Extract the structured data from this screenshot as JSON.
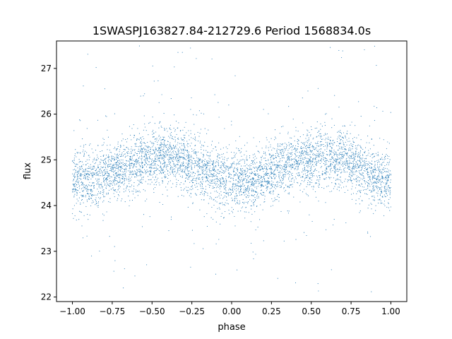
{
  "chart_data": {
    "type": "scatter",
    "title": "1SWASPJ163827.84-212729.6 Period 1568834.0s",
    "xlabel": "phase",
    "ylabel": "flux",
    "xlim": [
      -1.1,
      1.1
    ],
    "ylim": [
      21.9,
      27.6
    ],
    "xticks": [
      -1.0,
      -0.75,
      -0.5,
      -0.25,
      0.0,
      0.25,
      0.5,
      0.75,
      1.0
    ],
    "xtick_labels": [
      "−1.00",
      "−0.75",
      "−0.50",
      "−0.25",
      "0.00",
      "0.25",
      "0.50",
      "0.75",
      "1.00"
    ],
    "yticks": [
      22,
      23,
      24,
      25,
      26,
      27
    ],
    "ytick_labels": [
      "22",
      "23",
      "24",
      "25",
      "26",
      "27"
    ],
    "grid": false,
    "point_color": "#1f77b4",
    "series": [
      {
        "phase_range": [
          -1.0,
          1.0
        ],
        "typical_flux_range": [
          23.8,
          25.8
        ],
        "outlier_flux_range": [
          22.1,
          27.5
        ],
        "profile": [
          {
            "phase": -1.0,
            "flux": 24.6
          },
          {
            "phase": -0.9,
            "flux": 24.55
          },
          {
            "phase": -0.75,
            "flux": 24.7
          },
          {
            "phase": -0.6,
            "flux": 24.95
          },
          {
            "phase": -0.45,
            "flux": 25.05
          },
          {
            "phase": -0.3,
            "flux": 25.05
          },
          {
            "phase": -0.2,
            "flux": 24.8
          },
          {
            "phase": -0.1,
            "flux": 24.65
          },
          {
            "phase": 0.0,
            "flux": 24.55
          },
          {
            "phase": 0.1,
            "flux": 24.55
          },
          {
            "phase": 0.25,
            "flux": 24.7
          },
          {
            "phase": 0.4,
            "flux": 24.95
          },
          {
            "phase": 0.55,
            "flux": 25.05
          },
          {
            "phase": 0.7,
            "flux": 25.05
          },
          {
            "phase": 0.8,
            "flux": 24.8
          },
          {
            "phase": 0.9,
            "flux": 24.65
          },
          {
            "phase": 1.0,
            "flux": 24.55
          }
        ]
      }
    ]
  }
}
